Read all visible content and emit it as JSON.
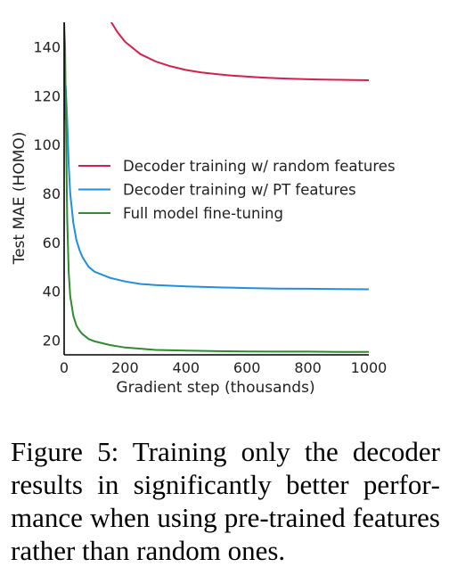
{
  "chart_data": {
    "type": "line",
    "title": "",
    "xlabel": "Gradient step (thousands)",
    "ylabel": "Test MAE (HOMO)",
    "xlim": [
      0,
      1000
    ],
    "ylim": [
      14,
      150
    ],
    "x_ticks": [
      0,
      200,
      400,
      600,
      800,
      1000
    ],
    "y_ticks": [
      20,
      40,
      60,
      80,
      100,
      120,
      140
    ],
    "grid": false,
    "legend_position": "center-right",
    "series": [
      {
        "name": "Decoder training w/ random features",
        "color": "#d6204a",
        "x": [
          150,
          175,
          200,
          250,
          300,
          350,
          400,
          450,
          500,
          550,
          600,
          650,
          700,
          750,
          800,
          850,
          900,
          950,
          1000
        ],
        "y": [
          151,
          146,
          142,
          137,
          134,
          132,
          130.5,
          129.5,
          128.8,
          128.2,
          127.8,
          127.4,
          127.1,
          126.9,
          126.7,
          126.6,
          126.5,
          126.4,
          126.3
        ]
      },
      {
        "name": "Decoder training w/ PT features",
        "color": "#1f8fe0",
        "x": [
          0,
          5,
          10,
          15,
          20,
          30,
          40,
          50,
          60,
          80,
          100,
          150,
          200,
          250,
          300,
          400,
          500,
          600,
          700,
          800,
          900,
          1000
        ],
        "y": [
          110,
          124,
          110,
          92,
          80,
          68,
          61,
          57,
          54,
          50,
          48,
          45.5,
          44,
          43,
          42.5,
          42,
          41.6,
          41.3,
          41.1,
          41,
          40.9,
          40.8
        ]
      },
      {
        "name": "Full model fine-tuning",
        "color": "#2e8b2e",
        "x": [
          0,
          3,
          5,
          8,
          10,
          15,
          20,
          30,
          40,
          50,
          60,
          80,
          100,
          150,
          200,
          300,
          400,
          500,
          600,
          700,
          800,
          900,
          1000
        ],
        "y": [
          150,
          140,
          120,
          90,
          70,
          48,
          38,
          30,
          26,
          24,
          22.5,
          20.5,
          19.5,
          18,
          17,
          16,
          15.7,
          15.5,
          15.4,
          15.3,
          15.3,
          15.2,
          15.2
        ]
      }
    ]
  },
  "caption": "Figure 5: Training only the decoder results in significantly better perfor­mance when using pre-trained fea­tures rather than random ones."
}
